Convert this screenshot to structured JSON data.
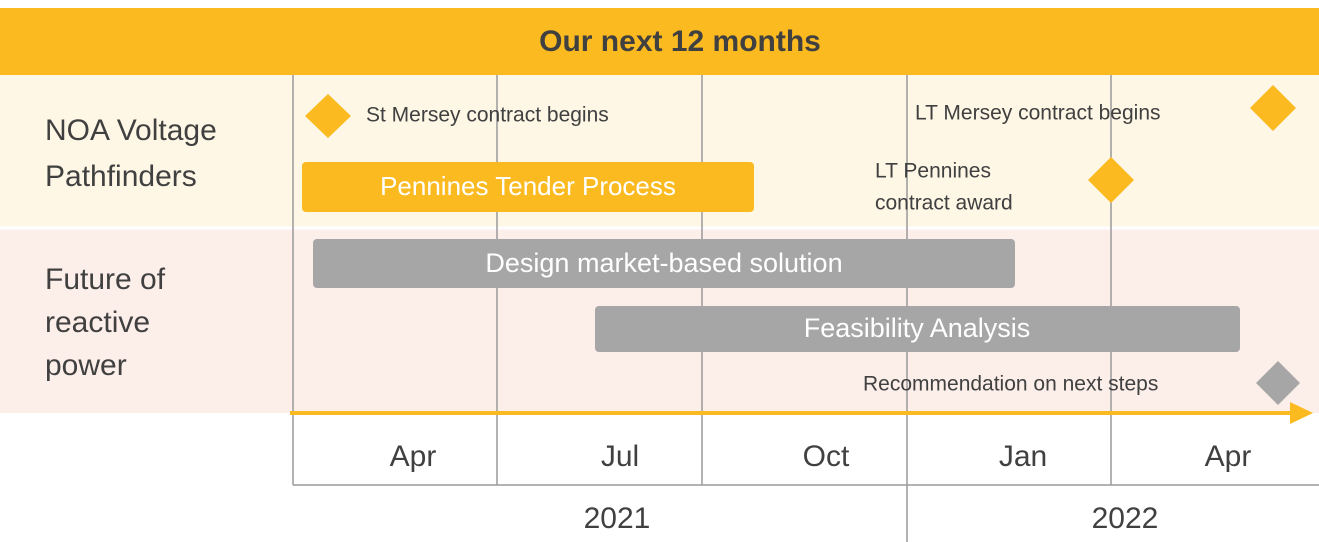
{
  "header": {
    "title": "Our next 12 months"
  },
  "rows": [
    {
      "label": [
        "NOA Voltage",
        "Pathfinders"
      ]
    },
    {
      "label": [
        "Future of",
        "reactive",
        "power"
      ]
    }
  ],
  "timeline": {
    "months": [
      "Apr",
      "Jul",
      "Oct",
      "Jan",
      "Apr"
    ],
    "years": [
      "2021",
      "2022"
    ]
  },
  "milestones": [
    {
      "label": [
        "St Mersey contract begins"
      ]
    },
    {
      "label": [
        "LT Mersey contract begins"
      ]
    },
    {
      "label": [
        "LT Pennines",
        "contract award"
      ]
    },
    {
      "label": [
        "Recommendation on next steps"
      ]
    }
  ],
  "activities": [
    {
      "label": "Pennines Tender Process"
    },
    {
      "label": "Design market-based solution"
    },
    {
      "label": "Feasibility Analysis"
    }
  ]
}
